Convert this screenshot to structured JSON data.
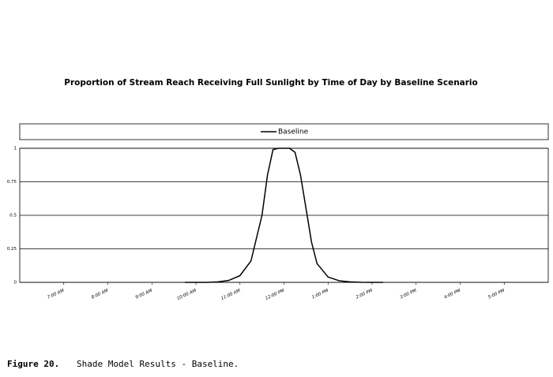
{
  "chart_data": {
    "type": "line",
    "title": "Proportion of Stream Reach Receiving Full Sunlight by Time of Day by Baseline Scenario",
    "x": [
      9.75,
      10,
      10.25,
      10.5,
      10.75,
      11,
      11.25,
      11.5,
      11.625,
      11.75,
      11.875,
      12,
      12.125,
      12.25,
      12.375,
      12.5,
      12.625,
      12.75,
      13,
      13.25,
      13.5,
      13.75,
      14,
      14.25
    ],
    "series": [
      {
        "name": "Baseline",
        "color": "#000000",
        "values": [
          0,
          0,
          0,
          0.004,
          0.015,
          0.05,
          0.16,
          0.5,
          0.8,
          0.99,
          1,
          1,
          1,
          0.97,
          0.8,
          0.55,
          0.3,
          0.14,
          0.04,
          0.012,
          0.004,
          0.001,
          0,
          0
        ]
      }
    ],
    "xlim": [
      6,
      18
    ],
    "xticks": [
      {
        "value": 7,
        "label": "7:00 AM"
      },
      {
        "value": 8,
        "label": "8:00 AM"
      },
      {
        "value": 9,
        "label": "9:00 AM"
      },
      {
        "value": 10,
        "label": "10:00 AM"
      },
      {
        "value": 11,
        "label": "11:00 AM"
      },
      {
        "value": 12,
        "label": "12:00 PM"
      },
      {
        "value": 13,
        "label": "1:00 PM"
      },
      {
        "value": 14,
        "label": "2:00 PM"
      },
      {
        "value": 15,
        "label": "3:00 PM"
      },
      {
        "value": 16,
        "label": "4:00 PM"
      },
      {
        "value": 17,
        "label": "5:00 PM"
      }
    ],
    "ylim": [
      0,
      1
    ],
    "yticks": [
      0,
      0.25,
      0.5,
      0.75,
      1
    ],
    "grid": true,
    "legend": "top"
  },
  "caption": {
    "label": "Figure 20.",
    "text": "Shade Model Results - Baseline."
  }
}
